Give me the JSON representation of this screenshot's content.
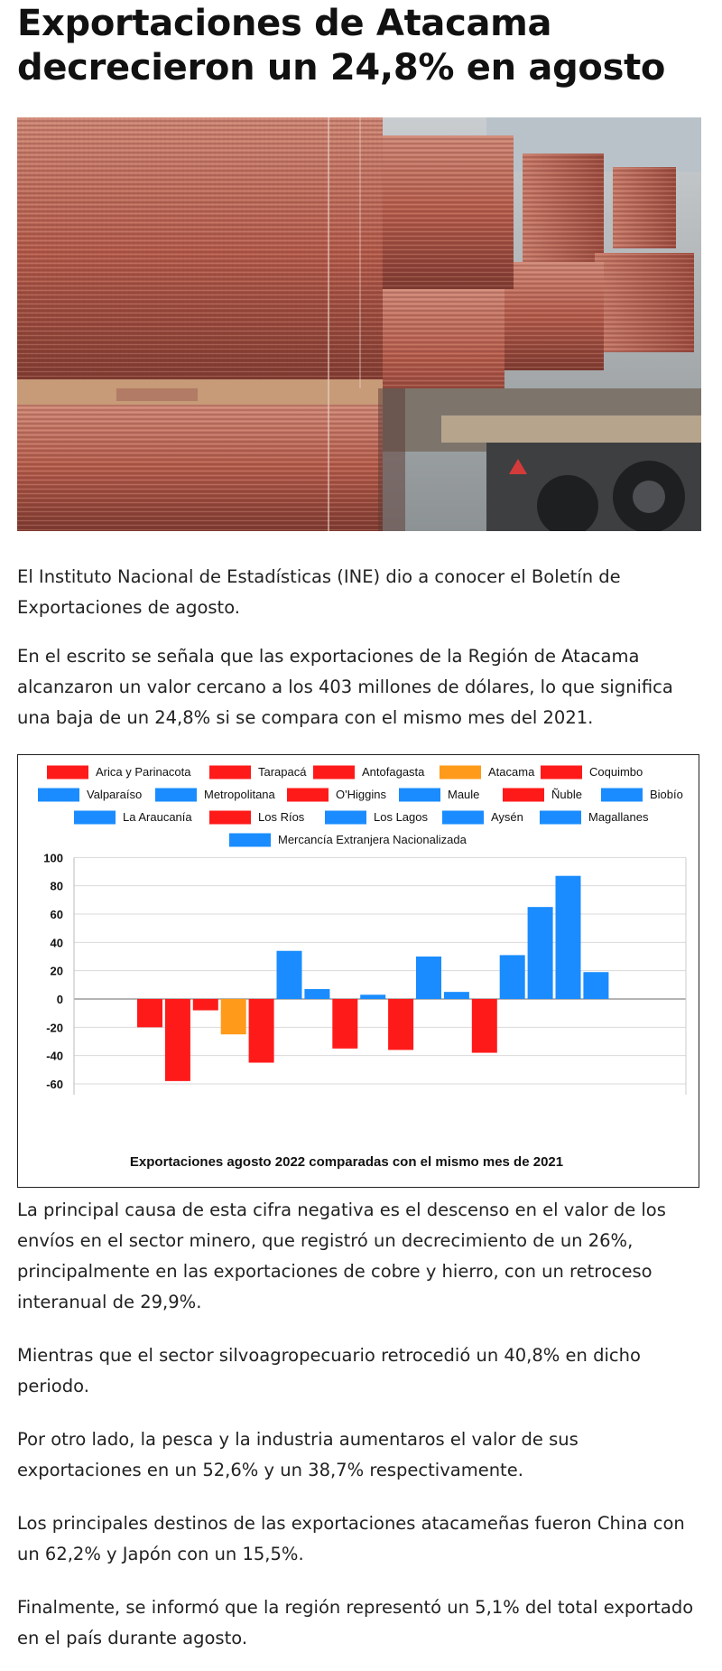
{
  "article": {
    "title_line1": "Exportaciones de Atacama",
    "title_line2": "decrecieron un 24,8% en agosto",
    "paragraphs": [
      [
        "El Instituto Nacional de Estadísticas (INE) dio a conocer el Boletín de",
        "Exportaciones de agosto."
      ],
      [
        "En el escrito se señala que las exportaciones de la Región de Atacama",
        "alcanzaron un valor cercano a los 403 millones de dólares, lo que significa",
        "una baja de un 24,8% si se compara con el mismo mes del 2021."
      ],
      [
        "La principal causa de esta cifra negativa es el descenso en el valor de los",
        "envíos en el sector minero, que registró un decrecimiento de un 26%,",
        "principalmente en las exportaciones de cobre y hierro, con un retroceso",
        "interanual de 29,9%."
      ],
      [
        "Mientras que el sector silvoagropecuario retrocedió un 40,8% en dicho",
        "periodo."
      ],
      [
        "Por otro lado, la pesca y la industria aumentaros el valor de sus",
        "exportaciones en un 52,6% y un 38,7% respectivamente."
      ],
      [
        "Los principales destinos de las exportaciones atacameñas fueron China con",
        "un 62,2% y Japón con un 15,5%."
      ],
      [
        "Finalmente, se informó que la región representó un 5,1% del total exportado",
        "en el país durante agosto."
      ]
    ]
  },
  "hero_image": {
    "description_icon": "photo-copper-cathodes"
  },
  "colors": {
    "red": "#ff1a1a",
    "orange": "#ff9a1a",
    "blue": "#1a8cff",
    "grid": "#d9d9d9",
    "axis": "#888888"
  },
  "chart_data": {
    "type": "bar",
    "title": "Exportaciones agosto 2022 comparadas con el mismo mes de 2021",
    "xlabel": "",
    "ylabel": "",
    "ylim": [
      -60,
      100
    ],
    "yticks": [
      100,
      80,
      60,
      40,
      20,
      0,
      -20,
      -40,
      -60
    ],
    "grid": true,
    "legend_placement": "top",
    "series": [
      {
        "name": "Arica y Parinacota",
        "value": -20,
        "color": "#ff1a1a"
      },
      {
        "name": "Tarapacá",
        "value": -58,
        "color": "#ff1a1a"
      },
      {
        "name": "Antofagasta",
        "value": -8,
        "color": "#ff1a1a"
      },
      {
        "name": "Atacama",
        "value": -25,
        "color": "#ff9a1a"
      },
      {
        "name": "Coquimbo",
        "value": -45,
        "color": "#ff1a1a"
      },
      {
        "name": "Valparaíso",
        "value": 34,
        "color": "#1a8cff"
      },
      {
        "name": "Metropolitana",
        "value": 7,
        "color": "#1a8cff"
      },
      {
        "name": "O'Higgins",
        "value": -35,
        "color": "#ff1a1a"
      },
      {
        "name": "Maule",
        "value": 3,
        "color": "#1a8cff"
      },
      {
        "name": "Ñuble",
        "value": -36,
        "color": "#ff1a1a"
      },
      {
        "name": "Biobío",
        "value": 30,
        "color": "#1a8cff"
      },
      {
        "name": "La Araucanía",
        "value": 5,
        "color": "#1a8cff"
      },
      {
        "name": "Los Ríos",
        "value": -38,
        "color": "#ff1a1a"
      },
      {
        "name": "Los Lagos",
        "value": 31,
        "color": "#1a8cff"
      },
      {
        "name": "Aysén",
        "value": 65,
        "color": "#1a8cff"
      },
      {
        "name": "Magallanes",
        "value": 87,
        "color": "#1a8cff"
      },
      {
        "name": "Mercancía Extranjera Nacionalizada",
        "value": 19,
        "color": "#1a8cff"
      }
    ],
    "legend_rows": [
      [
        0,
        1,
        2,
        3,
        4
      ],
      [
        5,
        6,
        7,
        8,
        9,
        10
      ],
      [
        11,
        12,
        13,
        14,
        15
      ],
      [
        16
      ]
    ]
  }
}
